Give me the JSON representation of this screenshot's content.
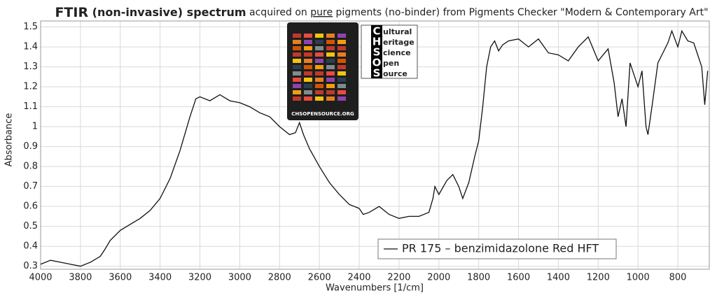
{
  "chart_data": {
    "type": "line",
    "title": [
      "FTIR",
      " (non-invasive) spectrum",
      " acquired on ",
      "pure",
      " pigments (no-binder) from Pigments Checker \"Modern & Contemporary Art\""
    ],
    "x_label": "Wavenumbers [1/cm]",
    "y_label": "Absorbance",
    "xlim": [
      4000,
      642
    ],
    "ylim": [
      0.285,
      1.53
    ],
    "xticks": [
      4000,
      3800,
      3600,
      3400,
      3200,
      3000,
      2800,
      2600,
      2400,
      2200,
      2000,
      1800,
      1600,
      1400,
      1200,
      1000,
      800
    ],
    "yticks": [
      0.3,
      0.4,
      0.5,
      0.6,
      0.7,
      0.8,
      0.9,
      1,
      1.1,
      1.2,
      1.3,
      1.4,
      1.5
    ],
    "grid": true,
    "legend": "lower right",
    "series": [
      {
        "name": "PR 175 – benzimidazolone Red HFT",
        "color": "#111111",
        "x": [
          4000,
          3950,
          3900,
          3850,
          3800,
          3750,
          3700,
          3680,
          3650,
          3600,
          3550,
          3500,
          3450,
          3400,
          3350,
          3300,
          3250,
          3220,
          3200,
          3150,
          3100,
          3050,
          3000,
          2950,
          2900,
          2850,
          2800,
          2750,
          2720,
          2700,
          2680,
          2650,
          2600,
          2550,
          2500,
          2450,
          2400,
          2380,
          2350,
          2300,
          2250,
          2200,
          2150,
          2100,
          2050,
          2030,
          2020,
          2000,
          1960,
          1930,
          1900,
          1880,
          1850,
          1820,
          1800,
          1780,
          1760,
          1740,
          1720,
          1700,
          1680,
          1650,
          1600,
          1550,
          1500,
          1450,
          1400,
          1350,
          1300,
          1250,
          1200,
          1150,
          1120,
          1100,
          1080,
          1060,
          1040,
          1000,
          980,
          960,
          950,
          930,
          900,
          880,
          850,
          830,
          800,
          780,
          750,
          720,
          700,
          680,
          665,
          650
        ],
        "values": [
          0.31,
          0.33,
          0.32,
          0.31,
          0.3,
          0.32,
          0.35,
          0.38,
          0.43,
          0.48,
          0.51,
          0.54,
          0.58,
          0.64,
          0.74,
          0.88,
          1.05,
          1.14,
          1.15,
          1.13,
          1.16,
          1.13,
          1.12,
          1.1,
          1.07,
          1.05,
          1.0,
          0.96,
          0.97,
          1.02,
          0.96,
          0.89,
          0.8,
          0.72,
          0.66,
          0.61,
          0.59,
          0.56,
          0.57,
          0.6,
          0.56,
          0.54,
          0.55,
          0.55,
          0.57,
          0.64,
          0.7,
          0.66,
          0.73,
          0.76,
          0.7,
          0.64,
          0.72,
          0.85,
          0.93,
          1.1,
          1.3,
          1.4,
          1.43,
          1.38,
          1.41,
          1.43,
          1.44,
          1.4,
          1.44,
          1.37,
          1.36,
          1.33,
          1.4,
          1.45,
          1.33,
          1.39,
          1.22,
          1.05,
          1.14,
          1.0,
          1.32,
          1.2,
          1.28,
          1.0,
          0.96,
          1.1,
          1.32,
          1.36,
          1.42,
          1.48,
          1.4,
          1.48,
          1.43,
          1.42,
          1.36,
          1.3,
          1.11,
          1.28
        ]
      }
    ]
  },
  "logo": {
    "letters": [
      "C",
      "H",
      "S",
      "O",
      "S"
    ],
    "rest": [
      "ultural",
      "eritage",
      "cience",
      "pen",
      "ource"
    ]
  },
  "checker_caption": "CHSOPENSOURCE.ORG"
}
